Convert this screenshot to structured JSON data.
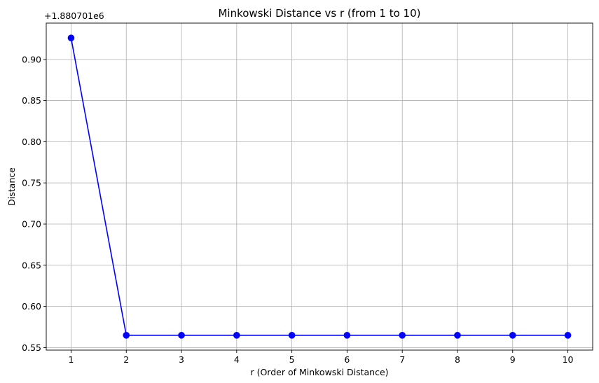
{
  "chart_data": {
    "type": "line",
    "title": "Minkowski Distance vs r (from 1 to 10)",
    "xlabel": "r (Order of Minkowski Distance)",
    "ylabel": "Distance",
    "offset_label": "+1.880701e6",
    "x": [
      1,
      2,
      3,
      4,
      5,
      6,
      7,
      8,
      9,
      10
    ],
    "series": [
      {
        "values": [
          0.926,
          0.565,
          0.565,
          0.565,
          0.565,
          0.565,
          0.565,
          0.565,
          0.565,
          0.565
        ],
        "color": "#0000ff",
        "marker": "circle"
      }
    ],
    "xticks": [
      1,
      2,
      3,
      4,
      5,
      6,
      7,
      8,
      9,
      10
    ],
    "yticks": [
      0.55,
      0.6,
      0.65,
      0.7,
      0.75,
      0.8,
      0.85,
      0.9
    ],
    "ytick_labels": [
      "0.55",
      "0.60",
      "0.65",
      "0.70",
      "0.75",
      "0.80",
      "0.85",
      "0.90"
    ],
    "xlim": [
      0.55,
      10.45
    ],
    "ylim": [
      0.547,
      0.944
    ],
    "grid": true
  }
}
